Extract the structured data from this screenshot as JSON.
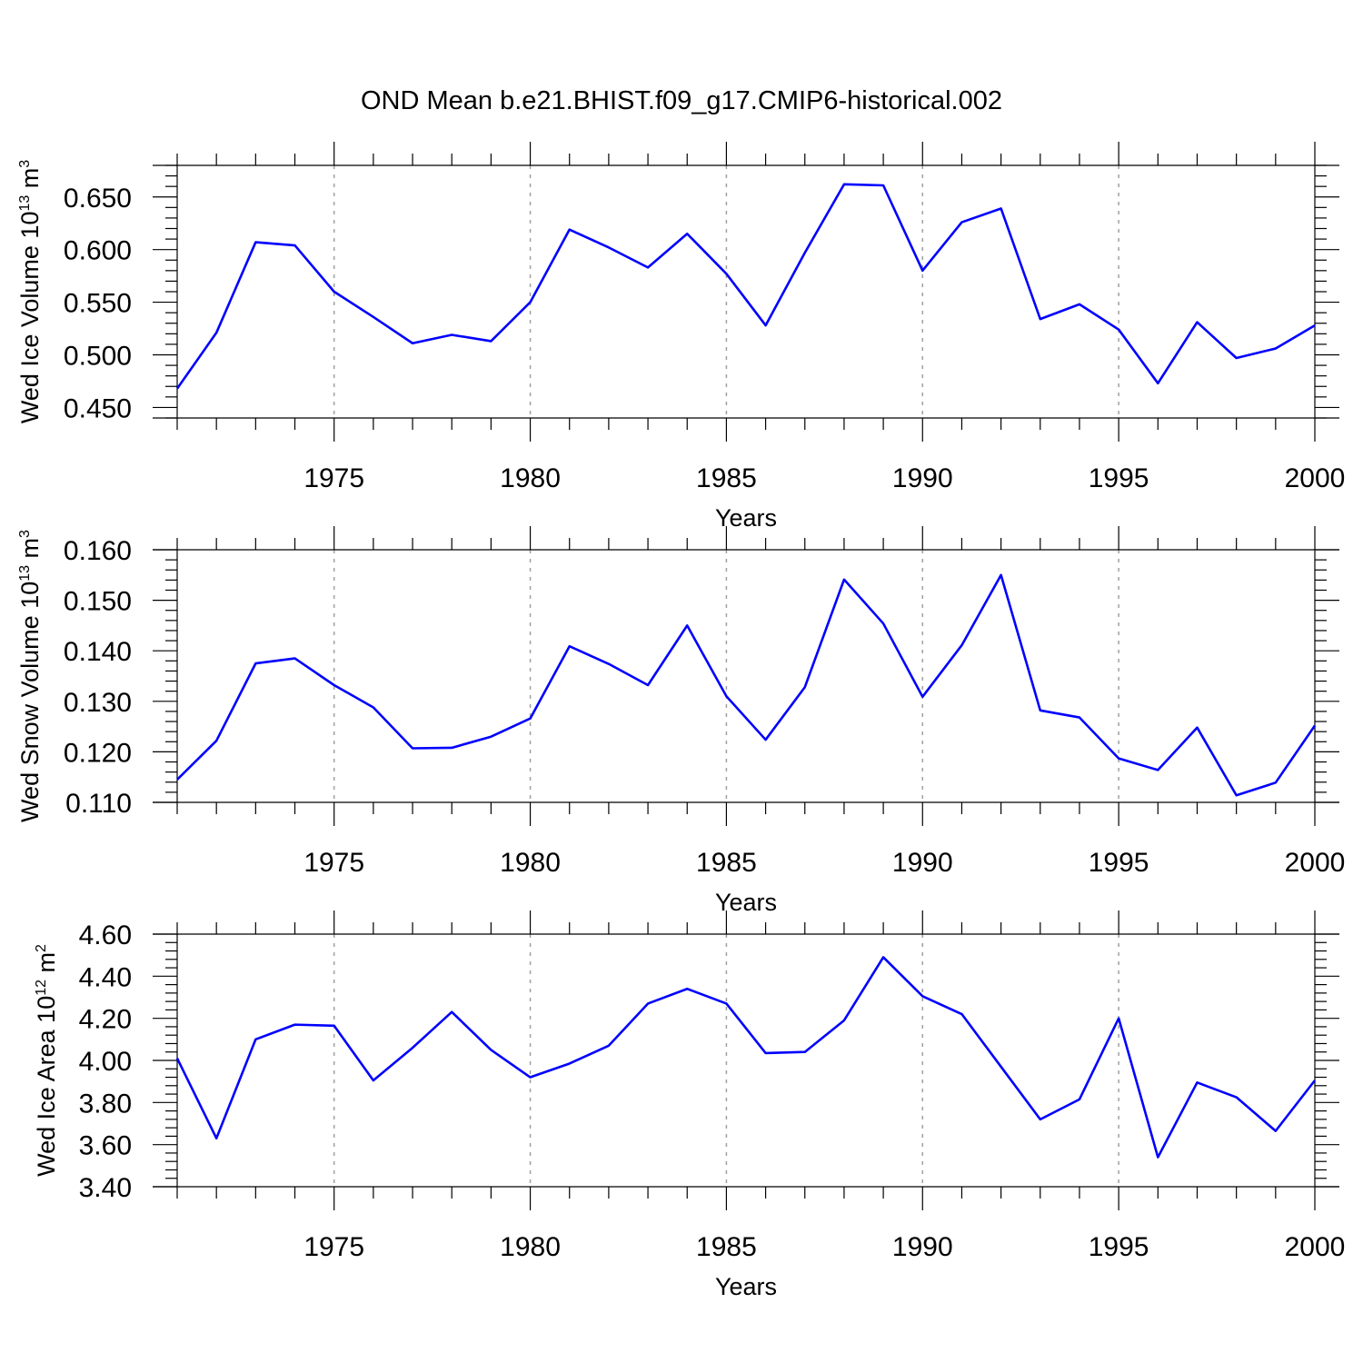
{
  "title": "OND Mean b.e21.BHIST.f09_g17.CMIP6-historical.002",
  "colors": {
    "line": "#0000ff",
    "axis": "#000000",
    "grid": "#a0a0a0"
  },
  "chart_data": [
    {
      "type": "line",
      "xlabel": "Years",
      "ylabel": {
        "prefix": "Wed Ice Volume 10",
        "exp": "13",
        "unit": " m",
        "unit_exp": "3"
      },
      "x": [
        1971,
        1972,
        1973,
        1974,
        1975,
        1976,
        1977,
        1978,
        1979,
        1980,
        1981,
        1982,
        1983,
        1984,
        1985,
        1986,
        1987,
        1988,
        1989,
        1990,
        1991,
        1992,
        1993,
        1994,
        1995,
        1996,
        1997,
        1998,
        1999,
        2000
      ],
      "series": [
        {
          "values": [
            0.468,
            0.521,
            0.607,
            0.604,
            0.56,
            0.536,
            0.511,
            0.519,
            0.513,
            0.55,
            0.619,
            0.602,
            0.583,
            0.615,
            0.577,
            0.528,
            0.597,
            0.662,
            0.661,
            0.58,
            0.626,
            0.639,
            0.534,
            0.548,
            0.524,
            0.473,
            0.531,
            0.497,
            0.506,
            0.528
          ]
        }
      ],
      "xlim": [
        1971,
        2000
      ],
      "ylim": [
        0.44,
        0.68
      ],
      "yticks": [
        0.45,
        0.5,
        0.55,
        0.6,
        0.65
      ],
      "ytick_labels": [
        "0.450",
        "0.500",
        "0.550",
        "0.600",
        "0.650"
      ],
      "xticks": [
        1975,
        1980,
        1985,
        1990,
        1995,
        2000
      ],
      "xtick_labels": [
        "1975",
        "1980",
        "1985",
        "1990",
        "1995",
        "2000"
      ],
      "grid": "vertical dashed at major x ticks"
    },
    {
      "type": "line",
      "xlabel": "Years",
      "ylabel": {
        "prefix": "Wed Snow Volume 10",
        "exp": "13",
        "unit": " m",
        "unit_exp": "3"
      },
      "x": [
        1971,
        1972,
        1973,
        1974,
        1975,
        1976,
        1977,
        1978,
        1979,
        1980,
        1981,
        1982,
        1983,
        1984,
        1985,
        1986,
        1987,
        1988,
        1989,
        1990,
        1991,
        1992,
        1993,
        1994,
        1995,
        1996,
        1997,
        1998,
        1999,
        2000
      ],
      "series": [
        {
          "values": [
            0.1145,
            0.1222,
            0.1375,
            0.1385,
            0.1332,
            0.1288,
            0.1207,
            0.1208,
            0.123,
            0.1266,
            0.1409,
            0.1374,
            0.1332,
            0.145,
            0.131,
            0.1224,
            0.1328,
            0.1541,
            0.1454,
            0.1309,
            0.1411,
            0.155,
            0.1282,
            0.1268,
            0.1187,
            0.1164,
            0.1248,
            0.1114,
            0.1139,
            0.1252
          ]
        }
      ],
      "xlim": [
        1971,
        2000
      ],
      "ylim": [
        0.11,
        0.16
      ],
      "yticks": [
        0.11,
        0.12,
        0.13,
        0.14,
        0.15,
        0.16
      ],
      "ytick_labels": [
        "0.110",
        "0.120",
        "0.130",
        "0.140",
        "0.150",
        "0.160"
      ],
      "xticks": [
        1975,
        1980,
        1985,
        1990,
        1995,
        2000
      ],
      "xtick_labels": [
        "1975",
        "1980",
        "1985",
        "1990",
        "1995",
        "2000"
      ],
      "grid": "vertical dashed at major x ticks"
    },
    {
      "type": "line",
      "xlabel": "Years",
      "ylabel": {
        "prefix": "Wed Ice Area 10",
        "exp": "12",
        "unit": " m",
        "unit_exp": "2"
      },
      "x": [
        1971,
        1972,
        1973,
        1974,
        1975,
        1976,
        1977,
        1978,
        1979,
        1980,
        1981,
        1982,
        1983,
        1984,
        1985,
        1986,
        1987,
        1988,
        1989,
        1990,
        1991,
        1992,
        1993,
        1994,
        1995,
        1996,
        1997,
        1998,
        1999,
        2000
      ],
      "series": [
        {
          "values": [
            4.01,
            3.63,
            4.1,
            4.17,
            4.165,
            3.905,
            4.06,
            4.23,
            4.05,
            3.92,
            3.985,
            4.07,
            4.27,
            4.34,
            4.27,
            4.035,
            4.04,
            4.19,
            4.49,
            4.305,
            4.22,
            3.97,
            3.72,
            3.815,
            4.2,
            3.54,
            3.895,
            3.825,
            3.665,
            3.905
          ]
        }
      ],
      "xlim": [
        1971,
        2000
      ],
      "ylim": [
        3.4,
        4.6
      ],
      "yticks": [
        3.4,
        3.6,
        3.8,
        4.0,
        4.2,
        4.4,
        4.6
      ],
      "ytick_labels": [
        "3.40",
        "3.60",
        "3.80",
        "4.00",
        "4.20",
        "4.40",
        "4.60"
      ],
      "xticks": [
        1975,
        1980,
        1985,
        1990,
        1995,
        2000
      ],
      "xtick_labels": [
        "1975",
        "1980",
        "1985",
        "1990",
        "1995",
        "2000"
      ],
      "grid": "vertical dashed at major x ticks"
    }
  ]
}
